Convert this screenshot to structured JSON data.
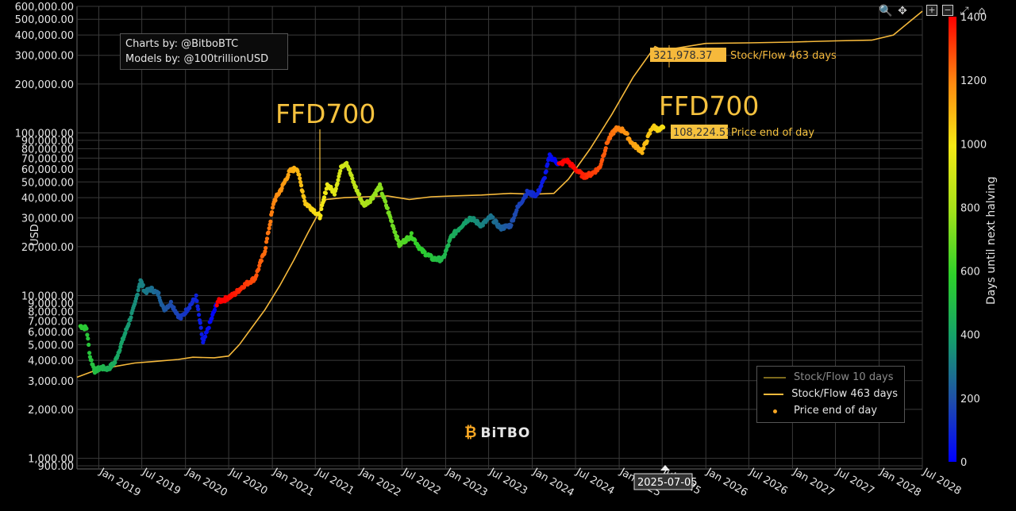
{
  "credits": {
    "line1": "Charts by: @BitboBTC",
    "line2": "Models by: @100trillionUSD"
  },
  "annotations": {
    "ffd_left": "FFD700",
    "ffd_right": "FFD700"
  },
  "brand": {
    "logo_text": "BiTBO"
  },
  "toolbar": {
    "zoom_icon": "zoom-icon",
    "pan_icon": "pan-icon",
    "plus_label": "+",
    "minus_label": "−",
    "autoscale_icon": "autoscale-icon",
    "home_icon": "home-icon"
  },
  "hover_label": "2025-07-05",
  "callouts": {
    "sf_value": "321,978.37",
    "sf_text": "Stock/Flow 463 days",
    "price_value": "108,224.51",
    "price_text": "Price end of day"
  },
  "legend": {
    "items": [
      {
        "label": "Stock/Flow 10 days",
        "color": "#7d6a1c",
        "kind": "line"
      },
      {
        "label": "Stock/Flow 463 days",
        "color": "#f6b93b",
        "kind": "line"
      },
      {
        "label": "Price end of day",
        "color": "#f6a623",
        "kind": "dot"
      }
    ]
  },
  "colorbar": {
    "title": "Days until next halving",
    "ticks": [
      "0",
      "200",
      "400",
      "600",
      "800",
      "1000",
      "1200",
      "1400"
    ],
    "min": 0,
    "max": 1400
  },
  "chart_data": {
    "type": "scatter",
    "ylabel": "USD",
    "yscale": "log",
    "ylim": [
      860,
      600000
    ],
    "xlim": [
      "2018-10-01",
      "2028-07-01"
    ],
    "y_ticks": [
      {
        "v": 600000,
        "label": "600,000.00"
      },
      {
        "v": 500000,
        "label": "500,000.00"
      },
      {
        "v": 400000,
        "label": "400,000.00"
      },
      {
        "v": 300000,
        "label": "300,000.00"
      },
      {
        "v": 200000,
        "label": "200,000.00"
      },
      {
        "v": 100000,
        "label": "100,000.00"
      },
      {
        "v": 90000,
        "label": "90,000.00"
      },
      {
        "v": 80000,
        "label": "80,000.00"
      },
      {
        "v": 70000,
        "label": "70,000.00"
      },
      {
        "v": 60000,
        "label": "60,000.00"
      },
      {
        "v": 50000,
        "label": "50,000.00"
      },
      {
        "v": 40000,
        "label": "40,000.00"
      },
      {
        "v": 30000,
        "label": "30,000.00"
      },
      {
        "v": 20000,
        "label": "20,000.00"
      },
      {
        "v": 10000,
        "label": "10,000.00"
      },
      {
        "v": 9000,
        "label": "9,000.00"
      },
      {
        "v": 8000,
        "label": "8,000.00"
      },
      {
        "v": 7000,
        "label": "7,000.00"
      },
      {
        "v": 6000,
        "label": "6,000.00"
      },
      {
        "v": 5000,
        "label": "5,000.00"
      },
      {
        "v": 4000,
        "label": "4,000.00"
      },
      {
        "v": 3000,
        "label": "3,000.00"
      },
      {
        "v": 2000,
        "label": "2,000.00"
      },
      {
        "v": 1000,
        "label": "1,000.00"
      },
      {
        "v": 900,
        "label": "900.00"
      }
    ],
    "x_ticks": [
      {
        "t": "2019-01-01",
        "label": "Jan 2019"
      },
      {
        "t": "2019-07-01",
        "label": "Jul 2019"
      },
      {
        "t": "2020-01-01",
        "label": "Jan 2020"
      },
      {
        "t": "2020-07-01",
        "label": "Jul 2020"
      },
      {
        "t": "2021-01-01",
        "label": "Jan 2021"
      },
      {
        "t": "2021-07-01",
        "label": "Jul 2021"
      },
      {
        "t": "2022-01-01",
        "label": "Jan 2022"
      },
      {
        "t": "2022-07-01",
        "label": "Jul 2022"
      },
      {
        "t": "2023-01-01",
        "label": "Jan 2023"
      },
      {
        "t": "2023-07-01",
        "label": "Jul 2023"
      },
      {
        "t": "2024-01-01",
        "label": "Jan 2024"
      },
      {
        "t": "2024-07-01",
        "label": "Jul 2024"
      },
      {
        "t": "2025-01-01",
        "label": "Jan 2025"
      },
      {
        "t": "2025-07-01",
        "label": "Jul 2025"
      },
      {
        "t": "2026-01-01",
        "label": "Jan 2026"
      },
      {
        "t": "2026-07-01",
        "label": "Jul 2026"
      },
      {
        "t": "2027-01-01",
        "label": "Jan 2027"
      },
      {
        "t": "2027-07-01",
        "label": "Jul 2027"
      },
      {
        "t": "2028-01-01",
        "label": "Jan 2028"
      },
      {
        "t": "2028-07-01",
        "label": "Jul 2028"
      }
    ],
    "halvings": [
      "2020-05-11",
      "2024-04-20",
      "2028-04-15"
    ],
    "series": [
      {
        "name": "Stock/Flow 463 days",
        "color": "#f6b93b",
        "points": [
          [
            "2018-10-01",
            3150
          ],
          [
            "2018-12-01",
            3400
          ],
          [
            "2019-03-01",
            3650
          ],
          [
            "2019-06-01",
            3850
          ],
          [
            "2019-09-01",
            3950
          ],
          [
            "2019-12-01",
            4050
          ],
          [
            "2020-02-01",
            4180
          ],
          [
            "2020-05-01",
            4150
          ],
          [
            "2020-07-01",
            4250
          ],
          [
            "2020-08-15",
            5000
          ],
          [
            "2020-10-01",
            6200
          ],
          [
            "2020-12-01",
            8200
          ],
          [
            "2021-02-01",
            11500
          ],
          [
            "2021-04-01",
            16500
          ],
          [
            "2021-06-01",
            24500
          ],
          [
            "2021-08-15",
            39000
          ],
          [
            "2021-11-01",
            40000
          ],
          [
            "2022-02-01",
            40500
          ],
          [
            "2022-05-01",
            41000
          ],
          [
            "2022-08-01",
            39000
          ],
          [
            "2022-11-01",
            40500
          ],
          [
            "2023-02-01",
            41000
          ],
          [
            "2023-06-01",
            41500
          ],
          [
            "2023-10-01",
            42500
          ],
          [
            "2024-01-01",
            42000
          ],
          [
            "2024-04-01",
            42500
          ],
          [
            "2024-06-01",
            52000
          ],
          [
            "2024-09-01",
            80000
          ],
          [
            "2024-12-01",
            130000
          ],
          [
            "2025-03-01",
            220000
          ],
          [
            "2025-06-01",
            340000
          ],
          [
            "2025-07-05",
            321978
          ],
          [
            "2026-01-01",
            355000
          ],
          [
            "2026-07-01",
            358000
          ],
          [
            "2027-01-01",
            362000
          ],
          [
            "2027-07-01",
            368000
          ],
          [
            "2027-12-01",
            372000
          ],
          [
            "2028-03-01",
            400000
          ],
          [
            "2028-07-01",
            560000
          ]
        ]
      },
      {
        "name": "Price end of day",
        "color_scale": "days until next halving",
        "points": [
          [
            "2018-10-15",
            6500
          ],
          [
            "2018-11-10",
            6300
          ],
          [
            "2018-11-25",
            4200
          ],
          [
            "2018-12-15",
            3450
          ],
          [
            "2019-01-10",
            3600
          ],
          [
            "2019-02-10",
            3550
          ],
          [
            "2019-03-10",
            3900
          ],
          [
            "2019-04-05",
            5000
          ],
          [
            "2019-05-10",
            7000
          ],
          [
            "2019-06-01",
            8700
          ],
          [
            "2019-06-25",
            12500
          ],
          [
            "2019-07-15",
            10500
          ],
          [
            "2019-08-10",
            11000
          ],
          [
            "2019-09-10",
            10200
          ],
          [
            "2019-10-01",
            8200
          ],
          [
            "2019-11-01",
            9000
          ],
          [
            "2019-12-10",
            7200
          ],
          [
            "2020-01-15",
            8500
          ],
          [
            "2020-02-15",
            9800
          ],
          [
            "2020-03-15",
            5100
          ],
          [
            "2020-04-15",
            6900
          ],
          [
            "2020-05-15",
            9200
          ],
          [
            "2020-06-15",
            9500
          ],
          [
            "2020-07-25",
            10200
          ],
          [
            "2020-09-01",
            11500
          ],
          [
            "2020-10-20",
            12800
          ],
          [
            "2020-12-01",
            19000
          ],
          [
            "2021-01-08",
            38000
          ],
          [
            "2021-02-10",
            46000
          ],
          [
            "2021-03-15",
            58000
          ],
          [
            "2021-04-15",
            61000
          ],
          [
            "2021-05-20",
            37000
          ],
          [
            "2021-06-20",
            34000
          ],
          [
            "2021-07-20",
            30500
          ],
          [
            "2021-08-20",
            48000
          ],
          [
            "2021-09-20",
            43000
          ],
          [
            "2021-10-20",
            63000
          ],
          [
            "2021-11-10",
            66000
          ],
          [
            "2021-12-10",
            49000
          ],
          [
            "2022-01-20",
            36000
          ],
          [
            "2022-02-20",
            39000
          ],
          [
            "2022-03-30",
            47000
          ],
          [
            "2022-05-10",
            31000
          ],
          [
            "2022-06-20",
            20500
          ],
          [
            "2022-08-10",
            23500
          ],
          [
            "2022-09-20",
            19000
          ],
          [
            "2022-11-10",
            16800
          ],
          [
            "2022-12-20",
            16700
          ],
          [
            "2023-01-25",
            23000
          ],
          [
            "2023-03-20",
            28000
          ],
          [
            "2023-04-15",
            30200
          ],
          [
            "2023-06-01",
            27000
          ],
          [
            "2023-07-10",
            30500
          ],
          [
            "2023-08-20",
            26000
          ],
          [
            "2023-10-01",
            27000
          ],
          [
            "2023-10-30",
            34500
          ],
          [
            "2023-12-10",
            43000
          ],
          [
            "2024-01-20",
            41500
          ],
          [
            "2024-02-20",
            52000
          ],
          [
            "2024-03-14",
            72000
          ],
          [
            "2024-04-25",
            64000
          ],
          [
            "2024-05-25",
            68000
          ],
          [
            "2024-06-25",
            61000
          ],
          [
            "2024-08-05",
            54000
          ],
          [
            "2024-09-05",
            56000
          ],
          [
            "2024-10-10",
            61000
          ],
          [
            "2024-11-15",
            90000
          ],
          [
            "2024-12-17",
            106000
          ],
          [
            "2025-01-20",
            104000
          ],
          [
            "2025-02-25",
            86000
          ],
          [
            "2025-04-08",
            77000
          ],
          [
            "2025-05-22",
            110000
          ],
          [
            "2025-06-20",
            104000
          ],
          [
            "2025-07-05",
            108224
          ]
        ]
      }
    ]
  }
}
